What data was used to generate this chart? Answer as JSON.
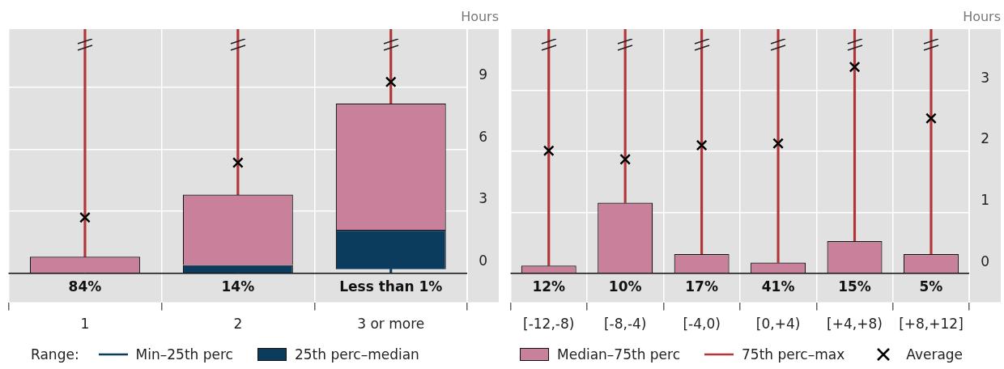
{
  "chart_data": [
    {
      "type": "bar",
      "stacked": true,
      "ylabel": "Hours",
      "legend": "bottom",
      "legend_title": "Range:",
      "grid": true,
      "marker": "cross",
      "categories": [
        "1",
        "2",
        "3 or more"
      ],
      "ylim": [
        -1.4,
        11.8
      ],
      "yticks": [
        0,
        3,
        6,
        9
      ],
      "series": [
        {
          "name": "Min–25th perc",
          "color": "#0b3c5d",
          "values": [
            0,
            0,
            0.2
          ]
        },
        {
          "name": "25th perc–median",
          "color": "#0b3c5d",
          "values": [
            0,
            0.4,
            1.9
          ]
        },
        {
          "color": "#c9809a",
          "values": [
            0.8,
            3.4,
            6.1
          ]
        },
        {
          "color": "#b0363a",
          "values": [
            11.0,
            8.0,
            3.6
          ]
        },
        {
          "type": "scatter",
          "color": "#000000",
          "x": [
            "1",
            "2",
            "3 or more"
          ],
          "values": [
            2.7,
            5.35,
            9.25
          ]
        }
      ],
      "annotations": [
        "84%",
        "14%",
        "Less than 1%"
      ]
    },
    {
      "type": "bar",
      "stacked": true,
      "ylabel": "Hours",
      "legend": "bottom",
      "grid": true,
      "marker": "cross",
      "categories": [
        "[-12,-8)",
        "[-8,-4)",
        "[-4,0)",
        "[0,+4)",
        "[+4,+8)",
        "[+8,+12]"
      ],
      "ylim": [
        -0.47,
        4.0
      ],
      "yticks": [
        0,
        1,
        2,
        3
      ],
      "series": [
        {
          "name": "Median–75th perc",
          "color": "#c9809a",
          "values": [
            0.13,
            1.16,
            0.32,
            0.18,
            0.53,
            0.32
          ]
        },
        {
          "name": "75th perc–max",
          "color": "#b0363a",
          "values": [
            3.87,
            2.84,
            3.68,
            3.82,
            3.47,
            3.68
          ]
        },
        {
          "type": "scatter",
          "name": "Average",
          "color": "#000000",
          "x": [
            "[-12,-8)",
            "[-8,-4)",
            "[-4,0)",
            "[0,+4)",
            "[+4,+8)",
            "[+8,+12]"
          ],
          "values": [
            2.01,
            1.87,
            2.1,
            2.13,
            3.38,
            2.54
          ]
        }
      ],
      "annotations": [
        "12%",
        "10%",
        "17%",
        "41%",
        "15%",
        "5%"
      ]
    }
  ]
}
